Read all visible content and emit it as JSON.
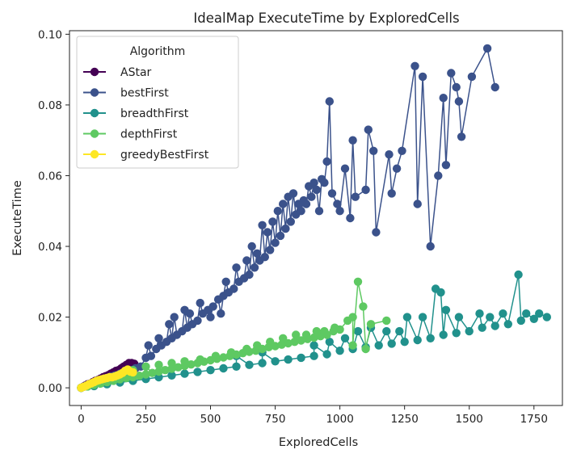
{
  "chart_data": {
    "type": "scatter",
    "title": "IdealMap ExecuteTime by ExploredCells",
    "xlabel": "ExploredCells",
    "ylabel": "ExecuteTime",
    "xlim": [
      -45,
      1860
    ],
    "ylim": [
      -0.005,
      0.101
    ],
    "xticks": [
      "0",
      "250",
      "500",
      "750",
      "1000",
      "1250",
      "1500",
      "1750"
    ],
    "xtick_values": [
      0,
      250,
      500,
      750,
      1000,
      1250,
      1500,
      1750
    ],
    "yticks": [
      "0.00",
      "0.02",
      "0.04",
      "0.06",
      "0.08",
      "0.10"
    ],
    "ytick_values": [
      0,
      0.02,
      0.04,
      0.06,
      0.08,
      0.1
    ],
    "grid": false,
    "legend": {
      "title": "Algorithm",
      "placement": "top-left"
    },
    "series": [
      {
        "name": "AStar",
        "color": "#440154",
        "points": [
          [
            0,
            0
          ],
          [
            8,
            0.0003
          ],
          [
            15,
            0.0006
          ],
          [
            25,
            0.001
          ],
          [
            35,
            0.0012
          ],
          [
            45,
            0.0016
          ],
          [
            55,
            0.002
          ],
          [
            65,
            0.0022
          ],
          [
            75,
            0.0026
          ],
          [
            85,
            0.003
          ],
          [
            95,
            0.0033
          ],
          [
            105,
            0.0036
          ],
          [
            115,
            0.004
          ],
          [
            125,
            0.0044
          ],
          [
            135,
            0.0048
          ],
          [
            145,
            0.005
          ],
          [
            155,
            0.0055
          ],
          [
            165,
            0.006
          ],
          [
            175,
            0.0065
          ],
          [
            185,
            0.007
          ],
          [
            195,
            0.007
          ],
          [
            205,
            0.0068
          ]
        ]
      },
      {
        "name": "bestFirst",
        "color": "#3b528b",
        "points": [
          [
            0,
            0
          ],
          [
            12,
            0.0004
          ],
          [
            25,
            0.0008
          ],
          [
            40,
            0.0012
          ],
          [
            55,
            0.0016
          ],
          [
            70,
            0.002
          ],
          [
            85,
            0.0024
          ],
          [
            100,
            0.0028
          ],
          [
            115,
            0.0032
          ],
          [
            130,
            0.0035
          ],
          [
            150,
            0.004
          ],
          [
            170,
            0.0045
          ],
          [
            190,
            0.005
          ],
          [
            210,
            0.0055
          ],
          [
            230,
            0.006
          ],
          [
            250,
            0.0085
          ],
          [
            270,
            0.009
          ],
          [
            290,
            0.011
          ],
          [
            310,
            0.012
          ],
          [
            330,
            0.013
          ],
          [
            350,
            0.014
          ],
          [
            370,
            0.015
          ],
          [
            390,
            0.016
          ],
          [
            410,
            0.017
          ],
          [
            430,
            0.018
          ],
          [
            450,
            0.019
          ],
          [
            470,
            0.021
          ],
          [
            490,
            0.022
          ],
          [
            510,
            0.023
          ],
          [
            530,
            0.025
          ],
          [
            550,
            0.026
          ],
          [
            570,
            0.027
          ],
          [
            590,
            0.028
          ],
          [
            610,
            0.03
          ],
          [
            630,
            0.031
          ],
          [
            650,
            0.032
          ],
          [
            670,
            0.034
          ],
          [
            690,
            0.036
          ],
          [
            710,
            0.037
          ],
          [
            730,
            0.039
          ],
          [
            750,
            0.041
          ],
          [
            770,
            0.043
          ],
          [
            790,
            0.045
          ],
          [
            810,
            0.047
          ],
          [
            830,
            0.049
          ],
          [
            850,
            0.05
          ],
          [
            870,
            0.052
          ],
          [
            890,
            0.054
          ],
          [
            910,
            0.056
          ],
          [
            930,
            0.059
          ],
          [
            950,
            0.064
          ],
          [
            960,
            0.081
          ],
          [
            1020,
            0.062
          ],
          [
            1050,
            0.07
          ],
          [
            1110,
            0.073
          ],
          [
            1130,
            0.067
          ],
          [
            1190,
            0.066
          ],
          [
            1220,
            0.062
          ],
          [
            1240,
            0.067
          ],
          [
            1290,
            0.091
          ],
          [
            1320,
            0.088
          ],
          [
            1400,
            0.082
          ],
          [
            1410,
            0.063
          ],
          [
            1430,
            0.089
          ],
          [
            1450,
            0.085
          ],
          [
            1460,
            0.081
          ],
          [
            1470,
            0.071
          ],
          [
            1510,
            0.088
          ],
          [
            1570,
            0.096
          ],
          [
            1600,
            0.085
          ],
          [
            260,
            0.012
          ],
          [
            300,
            0.014
          ],
          [
            340,
            0.018
          ],
          [
            360,
            0.02
          ],
          [
            400,
            0.022
          ],
          [
            420,
            0.021
          ],
          [
            460,
            0.024
          ],
          [
            500,
            0.02
          ],
          [
            540,
            0.021
          ],
          [
            560,
            0.03
          ],
          [
            600,
            0.034
          ],
          [
            640,
            0.036
          ],
          [
            660,
            0.04
          ],
          [
            680,
            0.038
          ],
          [
            700,
            0.046
          ],
          [
            720,
            0.044
          ],
          [
            740,
            0.047
          ],
          [
            760,
            0.05
          ],
          [
            780,
            0.052
          ],
          [
            800,
            0.054
          ],
          [
            820,
            0.055
          ],
          [
            840,
            0.052
          ],
          [
            860,
            0.053
          ],
          [
            880,
            0.057
          ],
          [
            900,
            0.058
          ],
          [
            920,
            0.05
          ],
          [
            940,
            0.058
          ],
          [
            970,
            0.055
          ],
          [
            990,
            0.052
          ],
          [
            1000,
            0.05
          ],
          [
            1040,
            0.048
          ],
          [
            1060,
            0.054
          ],
          [
            1100,
            0.056
          ],
          [
            1140,
            0.044
          ],
          [
            1200,
            0.055
          ],
          [
            1300,
            0.052
          ],
          [
            1350,
            0.04
          ],
          [
            1380,
            0.06
          ]
        ]
      },
      {
        "name": "breadthFirst",
        "color": "#21918c",
        "points": [
          [
            0,
            0
          ],
          [
            50,
            0.0005
          ],
          [
            100,
            0.001
          ],
          [
            150,
            0.0015
          ],
          [
            200,
            0.002
          ],
          [
            250,
            0.0025
          ],
          [
            300,
            0.003
          ],
          [
            350,
            0.0035
          ],
          [
            400,
            0.004
          ],
          [
            450,
            0.0045
          ],
          [
            500,
            0.005
          ],
          [
            550,
            0.0055
          ],
          [
            600,
            0.006
          ],
          [
            650,
            0.0065
          ],
          [
            700,
            0.007
          ],
          [
            750,
            0.0075
          ],
          [
            800,
            0.008
          ],
          [
            850,
            0.0085
          ],
          [
            900,
            0.009
          ],
          [
            950,
            0.0095
          ],
          [
            1000,
            0.0105
          ],
          [
            1050,
            0.011
          ],
          [
            1100,
            0.0115
          ],
          [
            1150,
            0.012
          ],
          [
            1200,
            0.0125
          ],
          [
            1250,
            0.013
          ],
          [
            1300,
            0.0135
          ],
          [
            1350,
            0.014
          ],
          [
            1400,
            0.015
          ],
          [
            1450,
            0.0155
          ],
          [
            1500,
            0.016
          ],
          [
            1550,
            0.017
          ],
          [
            1600,
            0.0175
          ],
          [
            1650,
            0.018
          ],
          [
            1700,
            0.019
          ],
          [
            1750,
            0.0195
          ],
          [
            1800,
            0.02
          ],
          [
            1230,
            0.016
          ],
          [
            1260,
            0.02
          ],
          [
            1320,
            0.02
          ],
          [
            1370,
            0.028
          ],
          [
            1390,
            0.027
          ],
          [
            1410,
            0.022
          ],
          [
            1460,
            0.02
          ],
          [
            1540,
            0.021
          ],
          [
            1580,
            0.02
          ],
          [
            1630,
            0.021
          ],
          [
            1690,
            0.032
          ],
          [
            1720,
            0.021
          ],
          [
            1770,
            0.021
          ],
          [
            1020,
            0.014
          ],
          [
            1070,
            0.016
          ],
          [
            1120,
            0.017
          ],
          [
            1180,
            0.016
          ],
          [
            960,
            0.013
          ],
          [
            900,
            0.012
          ],
          [
            700,
            0.01
          ],
          [
            600,
            0.009
          ]
        ]
      },
      {
        "name": "depthFirst",
        "color": "#5ec962",
        "points": [
          [
            0,
            0
          ],
          [
            25,
            0.0004
          ],
          [
            50,
            0.0008
          ],
          [
            75,
            0.0012
          ],
          [
            100,
            0.0016
          ],
          [
            125,
            0.002
          ],
          [
            150,
            0.0024
          ],
          [
            175,
            0.0028
          ],
          [
            200,
            0.003
          ],
          [
            225,
            0.0034
          ],
          [
            250,
            0.0038
          ],
          [
            275,
            0.0042
          ],
          [
            300,
            0.0046
          ],
          [
            325,
            0.005
          ],
          [
            350,
            0.0054
          ],
          [
            375,
            0.0058
          ],
          [
            400,
            0.0062
          ],
          [
            425,
            0.0066
          ],
          [
            450,
            0.007
          ],
          [
            475,
            0.0074
          ],
          [
            500,
            0.0078
          ],
          [
            525,
            0.0082
          ],
          [
            550,
            0.0086
          ],
          [
            575,
            0.009
          ],
          [
            600,
            0.0094
          ],
          [
            625,
            0.0098
          ],
          [
            650,
            0.0102
          ],
          [
            675,
            0.0105
          ],
          [
            700,
            0.011
          ],
          [
            725,
            0.0115
          ],
          [
            750,
            0.0118
          ],
          [
            775,
            0.0122
          ],
          [
            800,
            0.0126
          ],
          [
            825,
            0.013
          ],
          [
            850,
            0.0134
          ],
          [
            875,
            0.0138
          ],
          [
            900,
            0.0142
          ],
          [
            925,
            0.0146
          ],
          [
            950,
            0.015
          ],
          [
            975,
            0.016
          ],
          [
            1000,
            0.0165
          ],
          [
            1030,
            0.019
          ],
          [
            1050,
            0.02
          ],
          [
            1070,
            0.03
          ],
          [
            1090,
            0.023
          ],
          [
            1120,
            0.018
          ],
          [
            1180,
            0.019
          ],
          [
            1050,
            0.012
          ],
          [
            1100,
            0.011
          ],
          [
            980,
            0.017
          ],
          [
            940,
            0.016
          ],
          [
            910,
            0.016
          ],
          [
            870,
            0.015
          ],
          [
            830,
            0.015
          ],
          [
            780,
            0.014
          ],
          [
            730,
            0.013
          ],
          [
            680,
            0.012
          ],
          [
            640,
            0.011
          ],
          [
            580,
            0.01
          ],
          [
            520,
            0.009
          ],
          [
            460,
            0.008
          ],
          [
            400,
            0.0075
          ],
          [
            350,
            0.007
          ],
          [
            300,
            0.0065
          ],
          [
            250,
            0.006
          ],
          [
            200,
            0.005
          ]
        ]
      },
      {
        "name": "greedyBestFirst",
        "color": "#fde725",
        "points": [
          [
            0,
            0
          ],
          [
            10,
            0.0003
          ],
          [
            20,
            0.0006
          ],
          [
            30,
            0.001
          ],
          [
            40,
            0.0013
          ],
          [
            50,
            0.0016
          ],
          [
            60,
            0.002
          ],
          [
            70,
            0.0022
          ],
          [
            80,
            0.0024
          ],
          [
            90,
            0.0026
          ],
          [
            100,
            0.0028
          ],
          [
            110,
            0.003
          ],
          [
            120,
            0.003
          ],
          [
            130,
            0.0032
          ],
          [
            140,
            0.0035
          ],
          [
            150,
            0.0038
          ],
          [
            160,
            0.0042
          ],
          [
            170,
            0.0048
          ],
          [
            180,
            0.0052
          ],
          [
            190,
            0.0046
          ],
          [
            200,
            0.0044
          ]
        ]
      }
    ]
  }
}
